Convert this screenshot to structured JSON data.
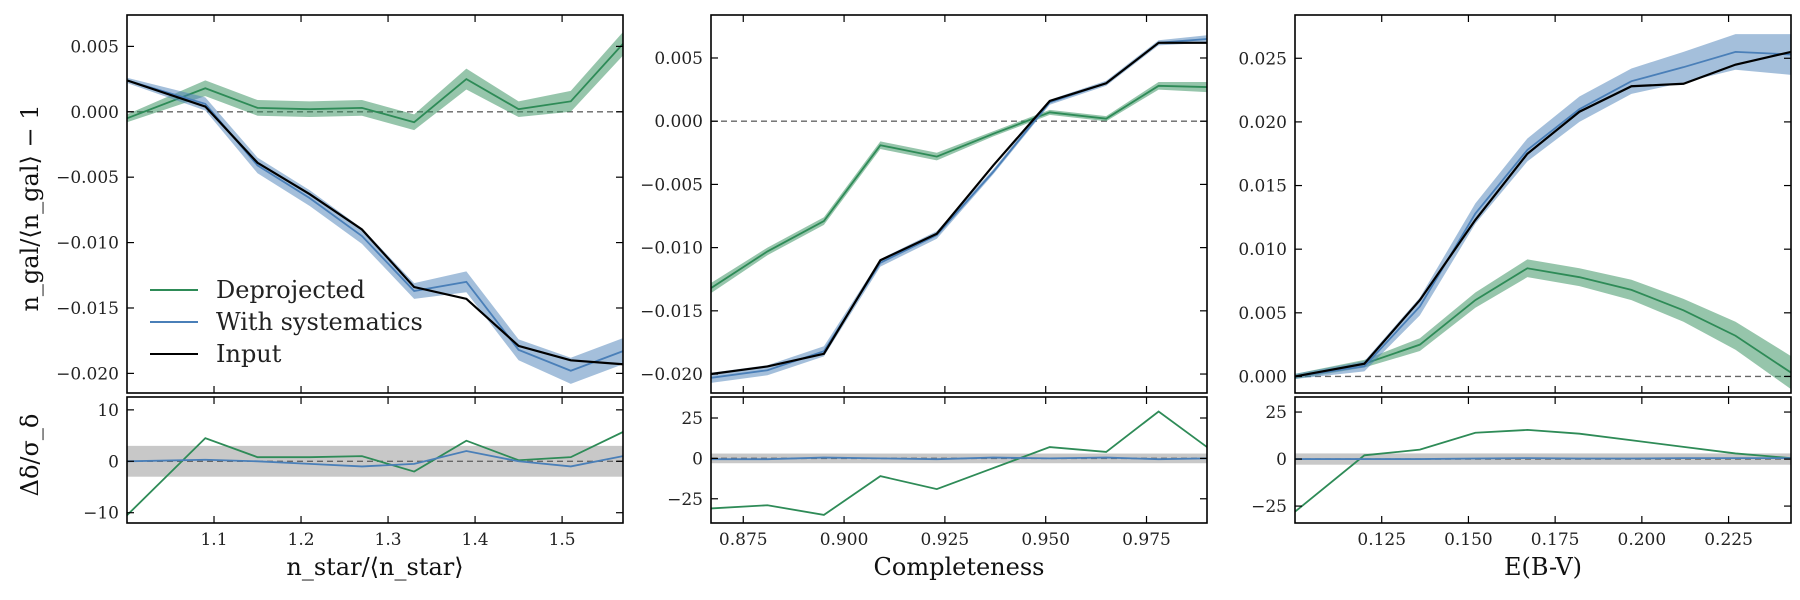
{
  "colors": {
    "deprojected": "#2e8b57",
    "systematics": "#4a7fb8",
    "input": "#000000",
    "ref_band": "#c8c8c8",
    "zero_line": "#666666"
  },
  "legend": {
    "placement": "lower-left of first panel",
    "entries": [
      {
        "key": "deprojected",
        "label": "Deprojected"
      },
      {
        "key": "systematics",
        "label": "With systematics"
      },
      {
        "key": "input",
        "label": "Input"
      }
    ]
  },
  "ylabel_main": "n_gal/⟨n_gal⟩ − 1",
  "ylabel_ratio": "Δδ/σ_δ",
  "chart_data": [
    {
      "type": "line",
      "xlabel": "n_star/⟨n_star⟩",
      "xlim": [
        1.0,
        1.57
      ],
      "xticks": [
        1.1,
        1.2,
        1.3,
        1.4,
        1.5
      ],
      "xticklabels": [
        "1.1",
        "1.2",
        "1.3",
        "1.4",
        "1.5"
      ],
      "top": {
        "ylim": [
          -0.0215,
          0.0074
        ],
        "yticks": [
          -0.02,
          -0.015,
          -0.01,
          -0.005,
          0.0,
          0.005
        ],
        "yticklabels": [
          "−0.020",
          "−0.015",
          "−0.010",
          "−0.005",
          "0.000",
          "0.005"
        ],
        "x": [
          1.0,
          1.09,
          1.15,
          1.21,
          1.27,
          1.33,
          1.39,
          1.45,
          1.51,
          1.57
        ],
        "series": [
          {
            "key": "deprojected",
            "name": "Deprojected",
            "values": [
              -0.0005,
              0.0018,
              0.0003,
              0.0002,
              0.0003,
              -0.0008,
              0.0025,
              0.0002,
              0.0008,
              0.0052
            ],
            "err": [
              0.0003,
              0.0006,
              0.0006,
              0.0006,
              0.0006,
              0.0006,
              0.0008,
              0.0006,
              0.0008,
              0.0009
            ]
          },
          {
            "key": "systematics",
            "name": "With systematics",
            "values": [
              0.0024,
              0.0006,
              -0.0041,
              -0.0066,
              -0.0095,
              -0.0137,
              -0.013,
              -0.0182,
              -0.0198,
              -0.0183
            ],
            "err": [
              0.0002,
              0.0005,
              0.0006,
              0.0006,
              0.0006,
              0.0006,
              0.0008,
              0.0008,
              0.001,
              0.001
            ]
          },
          {
            "key": "input",
            "name": "Input",
            "values": [
              0.0024,
              0.0004,
              -0.0039,
              -0.0063,
              -0.009,
              -0.0134,
              -0.0143,
              -0.0179,
              -0.019,
              -0.0193
            ],
            "err": null
          }
        ]
      },
      "bottom": {
        "ylim": [
          -12,
          12.5
        ],
        "yticks": [
          -10,
          0,
          10
        ],
        "yticklabels": [
          "−10",
          "0",
          "10"
        ],
        "band": [
          -3,
          3
        ],
        "x": [
          1.0,
          1.09,
          1.15,
          1.21,
          1.27,
          1.33,
          1.39,
          1.45,
          1.51,
          1.57
        ],
        "series": [
          {
            "key": "deprojected",
            "name": "Deprojected",
            "values": [
              -10.5,
              4.5,
              0.8,
              0.8,
              1.0,
              -2.0,
              4.0,
              0.2,
              0.8,
              5.7
            ]
          },
          {
            "key": "systematics",
            "name": "With systematics",
            "values": [
              0.0,
              0.3,
              0.0,
              -0.5,
              -1.0,
              -0.5,
              2.0,
              0.0,
              -1.0,
              1.0
            ]
          }
        ]
      }
    },
    {
      "type": "line",
      "xlabel": "Completeness",
      "xlim": [
        0.867,
        0.99
      ],
      "xticks": [
        0.875,
        0.9,
        0.925,
        0.95,
        0.975
      ],
      "xticklabels": [
        "0.875",
        "0.900",
        "0.925",
        "0.950",
        "0.975"
      ],
      "top": {
        "ylim": [
          -0.0215,
          0.0084
        ],
        "yticks": [
          -0.02,
          -0.015,
          -0.01,
          -0.005,
          0.0,
          0.005
        ],
        "yticklabels": [
          "−0.020",
          "−0.015",
          "−0.010",
          "−0.005",
          "0.000",
          "0.005"
        ],
        "x": [
          0.867,
          0.881,
          0.895,
          0.909,
          0.923,
          0.937,
          0.951,
          0.965,
          0.978,
          0.99
        ],
        "series": [
          {
            "key": "deprojected",
            "name": "Deprojected",
            "values": [
              -0.0132,
              -0.0103,
              -0.0079,
              -0.0019,
              -0.0028,
              -0.001,
              0.0007,
              0.0002,
              0.0028,
              0.0027
            ],
            "err": [
              0.0004,
              0.0003,
              0.0003,
              0.0003,
              0.0003,
              0.0002,
              0.0002,
              0.0002,
              0.0003,
              0.0004
            ]
          },
          {
            "key": "systematics",
            "name": "With systematics",
            "values": [
              -0.0203,
              -0.0197,
              -0.0182,
              -0.0112,
              -0.009,
              -0.004,
              0.0015,
              0.003,
              0.0062,
              0.0065
            ],
            "err": [
              0.0004,
              0.0004,
              0.0004,
              0.0003,
              0.0003,
              0.0002,
              0.0002,
              0.0002,
              0.0002,
              0.0003
            ]
          },
          {
            "key": "input",
            "name": "Input",
            "values": [
              -0.02,
              -0.0194,
              -0.0184,
              -0.011,
              -0.0089,
              -0.0035,
              0.0016,
              0.003,
              0.0062,
              0.0062
            ],
            "err": null
          }
        ]
      },
      "bottom": {
        "ylim": [
          -40,
          38
        ],
        "yticks": [
          -25,
          0,
          25
        ],
        "yticklabels": [
          "−25",
          "0",
          "25"
        ],
        "band": [
          -3,
          3
        ],
        "x": [
          0.867,
          0.881,
          0.895,
          0.909,
          0.923,
          0.937,
          0.951,
          0.965,
          0.978,
          0.99
        ],
        "series": [
          {
            "key": "deprojected",
            "name": "Deprojected",
            "values": [
              -31,
              -29,
              -35,
              -11,
              -19,
              -6,
              7,
              4,
              29,
              7
            ]
          },
          {
            "key": "systematics",
            "name": "With systematics",
            "values": [
              -0.5,
              -0.5,
              0.5,
              0.0,
              -0.5,
              0.5,
              0.0,
              0.5,
              -0.5,
              0.0
            ]
          }
        ]
      }
    },
    {
      "type": "line",
      "xlabel": "E(B-V)",
      "xlim": [
        0.1,
        0.243
      ],
      "xticks": [
        0.125,
        0.15,
        0.175,
        0.2,
        0.225
      ],
      "xticklabels": [
        "0.125",
        "0.150",
        "0.175",
        "0.200",
        "0.225"
      ],
      "top": {
        "ylim": [
          -0.0013,
          0.0284
        ],
        "yticks": [
          0.0,
          0.005,
          0.01,
          0.015,
          0.02,
          0.025
        ],
        "yticklabels": [
          "0.000",
          "0.005",
          "0.010",
          "0.015",
          "0.020",
          "0.025"
        ],
        "x": [
          0.1,
          0.12,
          0.136,
          0.152,
          0.167,
          0.182,
          0.197,
          0.212,
          0.227,
          0.243
        ],
        "series": [
          {
            "key": "deprojected",
            "name": "Deprojected",
            "values": [
              0.0,
              0.001,
              0.0025,
              0.006,
              0.0085,
              0.0078,
              0.0068,
              0.0052,
              0.0032,
              0.0003
            ],
            "err": [
              0.0002,
              0.0003,
              0.0005,
              0.0006,
              0.0007,
              0.0007,
              0.0008,
              0.0009,
              0.0011,
              0.0013
            ]
          },
          {
            "key": "systematics",
            "name": "With systematics",
            "values": [
              0.0,
              0.0008,
              0.0055,
              0.0128,
              0.0178,
              0.021,
              0.0232,
              0.0243,
              0.0255,
              0.0253
            ],
            "err": [
              0.0002,
              0.0004,
              0.0007,
              0.0008,
              0.0009,
              0.001,
              0.001,
              0.0012,
              0.0014,
              0.0016
            ]
          },
          {
            "key": "input",
            "name": "Input",
            "values": [
              0.0,
              0.001,
              0.006,
              0.0123,
              0.0175,
              0.0208,
              0.0228,
              0.023,
              0.0245,
              0.0255
            ],
            "err": null
          }
        ]
      },
      "bottom": {
        "ylim": [
          -34,
          33
        ],
        "yticks": [
          -25,
          0,
          25
        ],
        "yticklabels": [
          "−25",
          "0",
          "25"
        ],
        "band": [
          -3,
          3
        ],
        "x": [
          0.1,
          0.12,
          0.136,
          0.152,
          0.167,
          0.182,
          0.197,
          0.212,
          0.227,
          0.243
        ],
        "series": [
          {
            "key": "deprojected",
            "name": "Deprojected",
            "values": [
              -28,
              2,
              5,
              14,
              15.5,
              13.5,
              10,
              6.5,
              3,
              0.5
            ]
          },
          {
            "key": "systematics",
            "name": "With systematics",
            "values": [
              0.0,
              0.0,
              0.0,
              0.3,
              0.5,
              0.3,
              0.3,
              0.5,
              0.5,
              0.5
            ]
          }
        ]
      }
    }
  ]
}
